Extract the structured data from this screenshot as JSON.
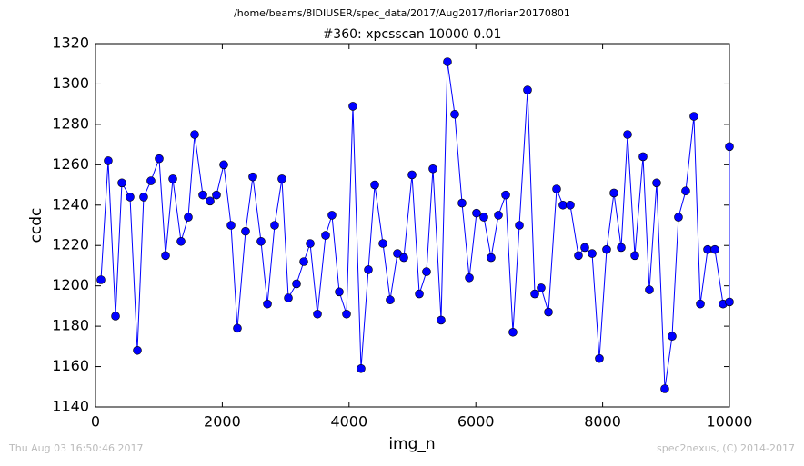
{
  "chart_data": {
    "type": "line",
    "subtitle": "/home/beams/8IDIUSER/spec_data/2017/Aug2017/florian20170801",
    "title": "#360: xpcsscan 10000 0.01",
    "xlabel": "img_n",
    "ylabel": "ccdc",
    "timestamp": "Thu Aug 03 16:50:46 2017",
    "credit": "spec2nexus, (C) 2014-2017",
    "color": "#0000ff",
    "marker": "circle",
    "grid": false,
    "xlim": [
      0,
      10000
    ],
    "xticks": [
      0,
      2000,
      4000,
      6000,
      8000,
      10000
    ],
    "ylim": [
      1140,
      1320
    ],
    "yticks": [
      1140,
      1160,
      1180,
      1200,
      1220,
      1240,
      1260,
      1280,
      1300,
      1320
    ],
    "x": [
      86,
      200,
      316,
      416,
      545,
      660,
      760,
      875,
      1004,
      1105,
      1220,
      1349,
      1463,
      1564,
      1693,
      1808,
      1908,
      2023,
      2138,
      2238,
      2367,
      2482,
      2611,
      2712,
      2826,
      2941,
      3042,
      3171,
      3286,
      3386,
      3501,
      3630,
      3730,
      3845,
      3960,
      4060,
      4189,
      4304,
      4405,
      4534,
      4648,
      4763,
      4864,
      4993,
      5108,
      5222,
      5323,
      5452,
      5552,
      5667,
      5782,
      5897,
      6011,
      6126,
      6241,
      6356,
      6471,
      6585,
      6686,
      6815,
      6930,
      7030,
      7145,
      7274,
      7374,
      7489,
      7618,
      7719,
      7834,
      7948,
      8063,
      8178,
      8293,
      8393,
      8508,
      8637,
      8737,
      8852,
      8981,
      9096,
      9196,
      9311,
      9440,
      9541,
      9656,
      9770,
      9900,
      10000,
      10000
    ],
    "values": [
      1203,
      1262,
      1185,
      1251,
      1244,
      1168,
      1244,
      1252,
      1263,
      1215,
      1253,
      1222,
      1234,
      1275,
      1245,
      1242,
      1245,
      1260,
      1230,
      1179,
      1227,
      1254,
      1222,
      1191,
      1230,
      1253,
      1194,
      1201,
      1212,
      1221,
      1186,
      1225,
      1235,
      1197,
      1186,
      1289,
      1159,
      1208,
      1250,
      1221,
      1193,
      1216,
      1214,
      1255,
      1196,
      1207,
      1258,
      1183,
      1311,
      1285,
      1241,
      1204,
      1236,
      1234,
      1214,
      1235,
      1245,
      1177,
      1230,
      1297,
      1196,
      1199,
      1187,
      1248,
      1240,
      1240,
      1215,
      1219,
      1216,
      1164,
      1218,
      1246,
      1219,
      1275,
      1215,
      1264,
      1198,
      1251,
      1149,
      1175,
      1234,
      1247,
      1284,
      1191,
      1218,
      1218,
      1191,
      1192,
      1269
    ]
  }
}
